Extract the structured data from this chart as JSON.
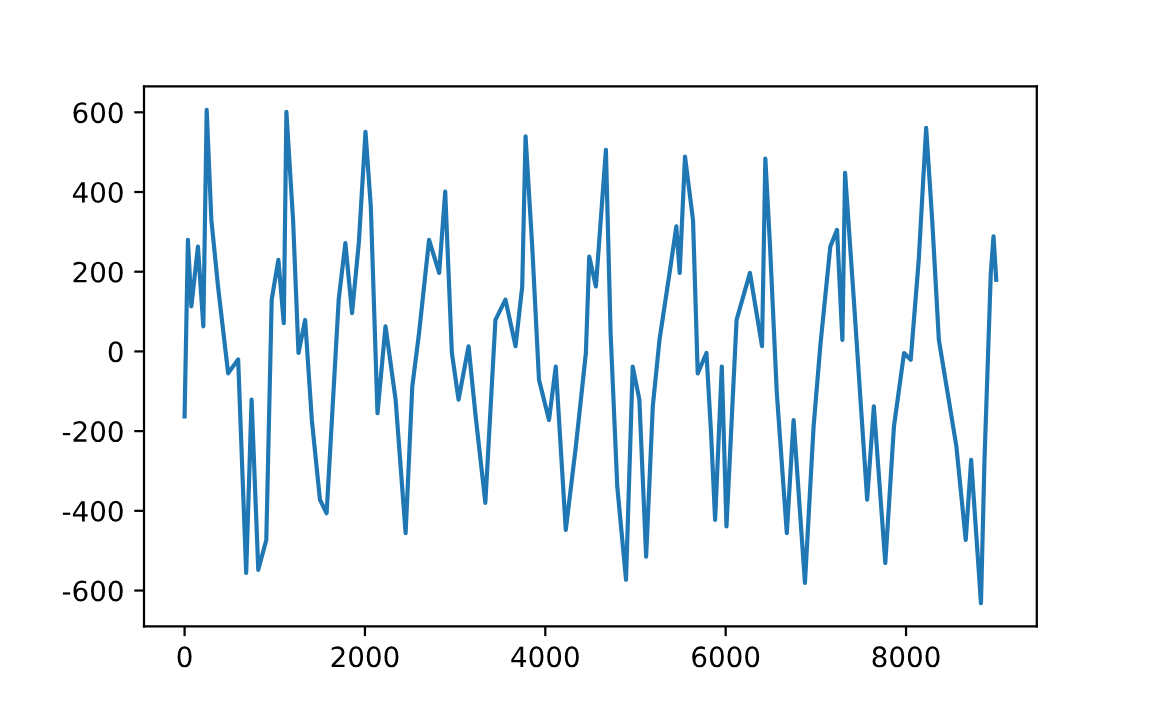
{
  "chart_data": {
    "type": "line",
    "xlim": [
      -450,
      9450
    ],
    "ylim": [
      -690,
      665
    ],
    "xticks": [
      0,
      2000,
      4000,
      6000,
      8000
    ],
    "yticks": [
      -600,
      -400,
      -200,
      0,
      200,
      400,
      600
    ],
    "grid": false,
    "marker": "none",
    "line_style": "solid",
    "series": [
      {
        "color": "#1f77b4",
        "x": [
          0,
          37,
          75,
          148,
          208,
          245,
          297,
          371,
          483,
          594,
          683,
          743,
          817,
          906,
          966,
          1040,
          1100,
          1129,
          1203,
          1263,
          1337,
          1411,
          1501,
          1575,
          1709,
          1783,
          1857,
          1932,
          2006,
          2065,
          2139,
          2228,
          2340,
          2451,
          2525,
          2600,
          2711,
          2823,
          2890,
          2964,
          3038,
          3149,
          3224,
          3335,
          3447,
          3558,
          3670,
          3744,
          3781,
          3855,
          3930,
          4041,
          4116,
          4227,
          4339,
          4450,
          4487,
          4561,
          4672,
          4724,
          4798,
          4895,
          4969,
          5043,
          5118,
          5192,
          5266,
          5378,
          5453,
          5490,
          5549,
          5638,
          5690,
          5787,
          5838,
          5883,
          5957,
          6009,
          6121,
          6269,
          6403,
          6440,
          6492,
          6567,
          6678,
          6753,
          6879,
          6975,
          7049,
          7160,
          7235,
          7294,
          7324,
          7421,
          7495,
          7569,
          7643,
          7770,
          7866,
          7978,
          8052,
          8141,
          8223,
          8290,
          8364,
          8461,
          8558,
          8662,
          8722,
          8831,
          8870,
          8940,
          8970,
          9000
        ],
        "values": [
          -163,
          280,
          113,
          263,
          63,
          606,
          330,
          163,
          -55,
          -20,
          -556,
          -121,
          -548,
          -473,
          130,
          230,
          71,
          601,
          330,
          -4,
          79,
          -172,
          -372,
          -406,
          130,
          272,
          96,
          272,
          551,
          364,
          -155,
          63,
          -121,
          -456,
          -88,
          46,
          280,
          197,
          401,
          -4,
          -121,
          13,
          -155,
          -380,
          79,
          130,
          13,
          163,
          540,
          263,
          -71,
          -172,
          -38,
          -448,
          -238,
          -4,
          238,
          163,
          506,
          46,
          -339,
          -573,
          -38,
          -121,
          -515,
          -138,
          29,
          197,
          314,
          197,
          489,
          330,
          -55,
          -4,
          -205,
          -423,
          -38,
          -439,
          79,
          197,
          13,
          484,
          263,
          -104,
          -456,
          -172,
          -581,
          -188,
          13,
          263,
          305,
          29,
          448,
          130,
          -121,
          -372,
          -138,
          -531,
          -188,
          -4,
          -21,
          230,
          561,
          330,
          29,
          -104,
          -238,
          -473,
          -272,
          -632,
          -272,
          197,
          289,
          180
        ]
      }
    ]
  }
}
